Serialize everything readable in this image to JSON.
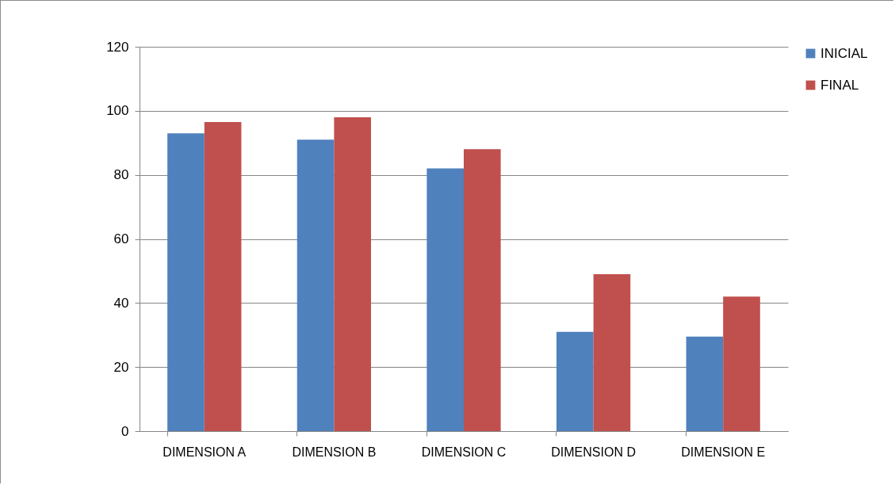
{
  "chart_data": {
    "type": "bar",
    "categories": [
      "DIMENSION A",
      "DIMENSION B",
      "DIMENSION C",
      "DIMENSION D",
      "DIMENSION E"
    ],
    "series": [
      {
        "name": "INICIAL",
        "color": "#4f81bd",
        "values": [
          93,
          91,
          82,
          31,
          29.5
        ]
      },
      {
        "name": "FINAL",
        "color": "#c0504d",
        "values": [
          96.5,
          98,
          88,
          49,
          42
        ]
      }
    ],
    "ylim": [
      0,
      120
    ],
    "yticks": [
      0,
      20,
      40,
      60,
      80,
      100,
      120
    ],
    "grid": "y",
    "legend": "right"
  }
}
